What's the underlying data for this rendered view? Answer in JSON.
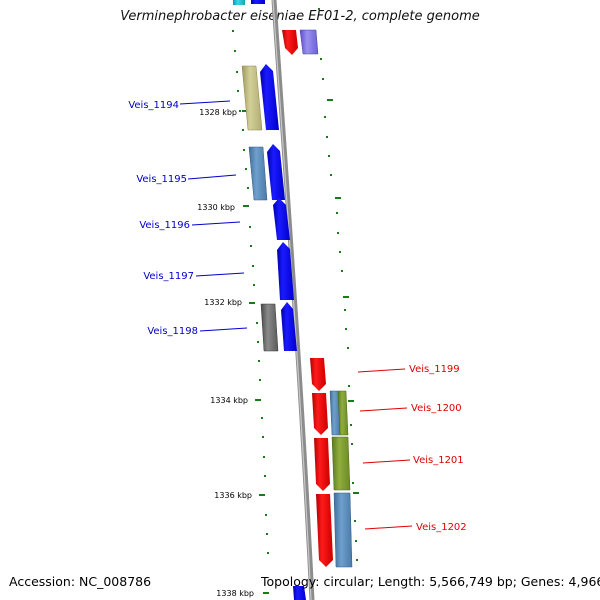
{
  "title": "Verminephrobacter eiseniae EF01-2, complete genome",
  "accession": "Accession: NC_008786",
  "stats": "Topology: circular; Length: 5,566,749 bp; Genes: 4,966",
  "colors": {
    "backbone": "#8c8c8c",
    "forward_label": "#0000cc",
    "reverse_label": "#e00000",
    "tick": "#1a7a1a"
  },
  "ticks": [
    "1328 kbp",
    "1330 kbp",
    "1332 kbp",
    "1334 kbp",
    "1336 kbp",
    "1338 kbp"
  ],
  "genes_left": [
    "Veis_1194",
    "Veis_1195",
    "Veis_1196",
    "Veis_1197",
    "Veis_1198"
  ],
  "genes_right": [
    "Veis_1199",
    "Veis_1200",
    "Veis_1201",
    "Veis_1202"
  ]
}
